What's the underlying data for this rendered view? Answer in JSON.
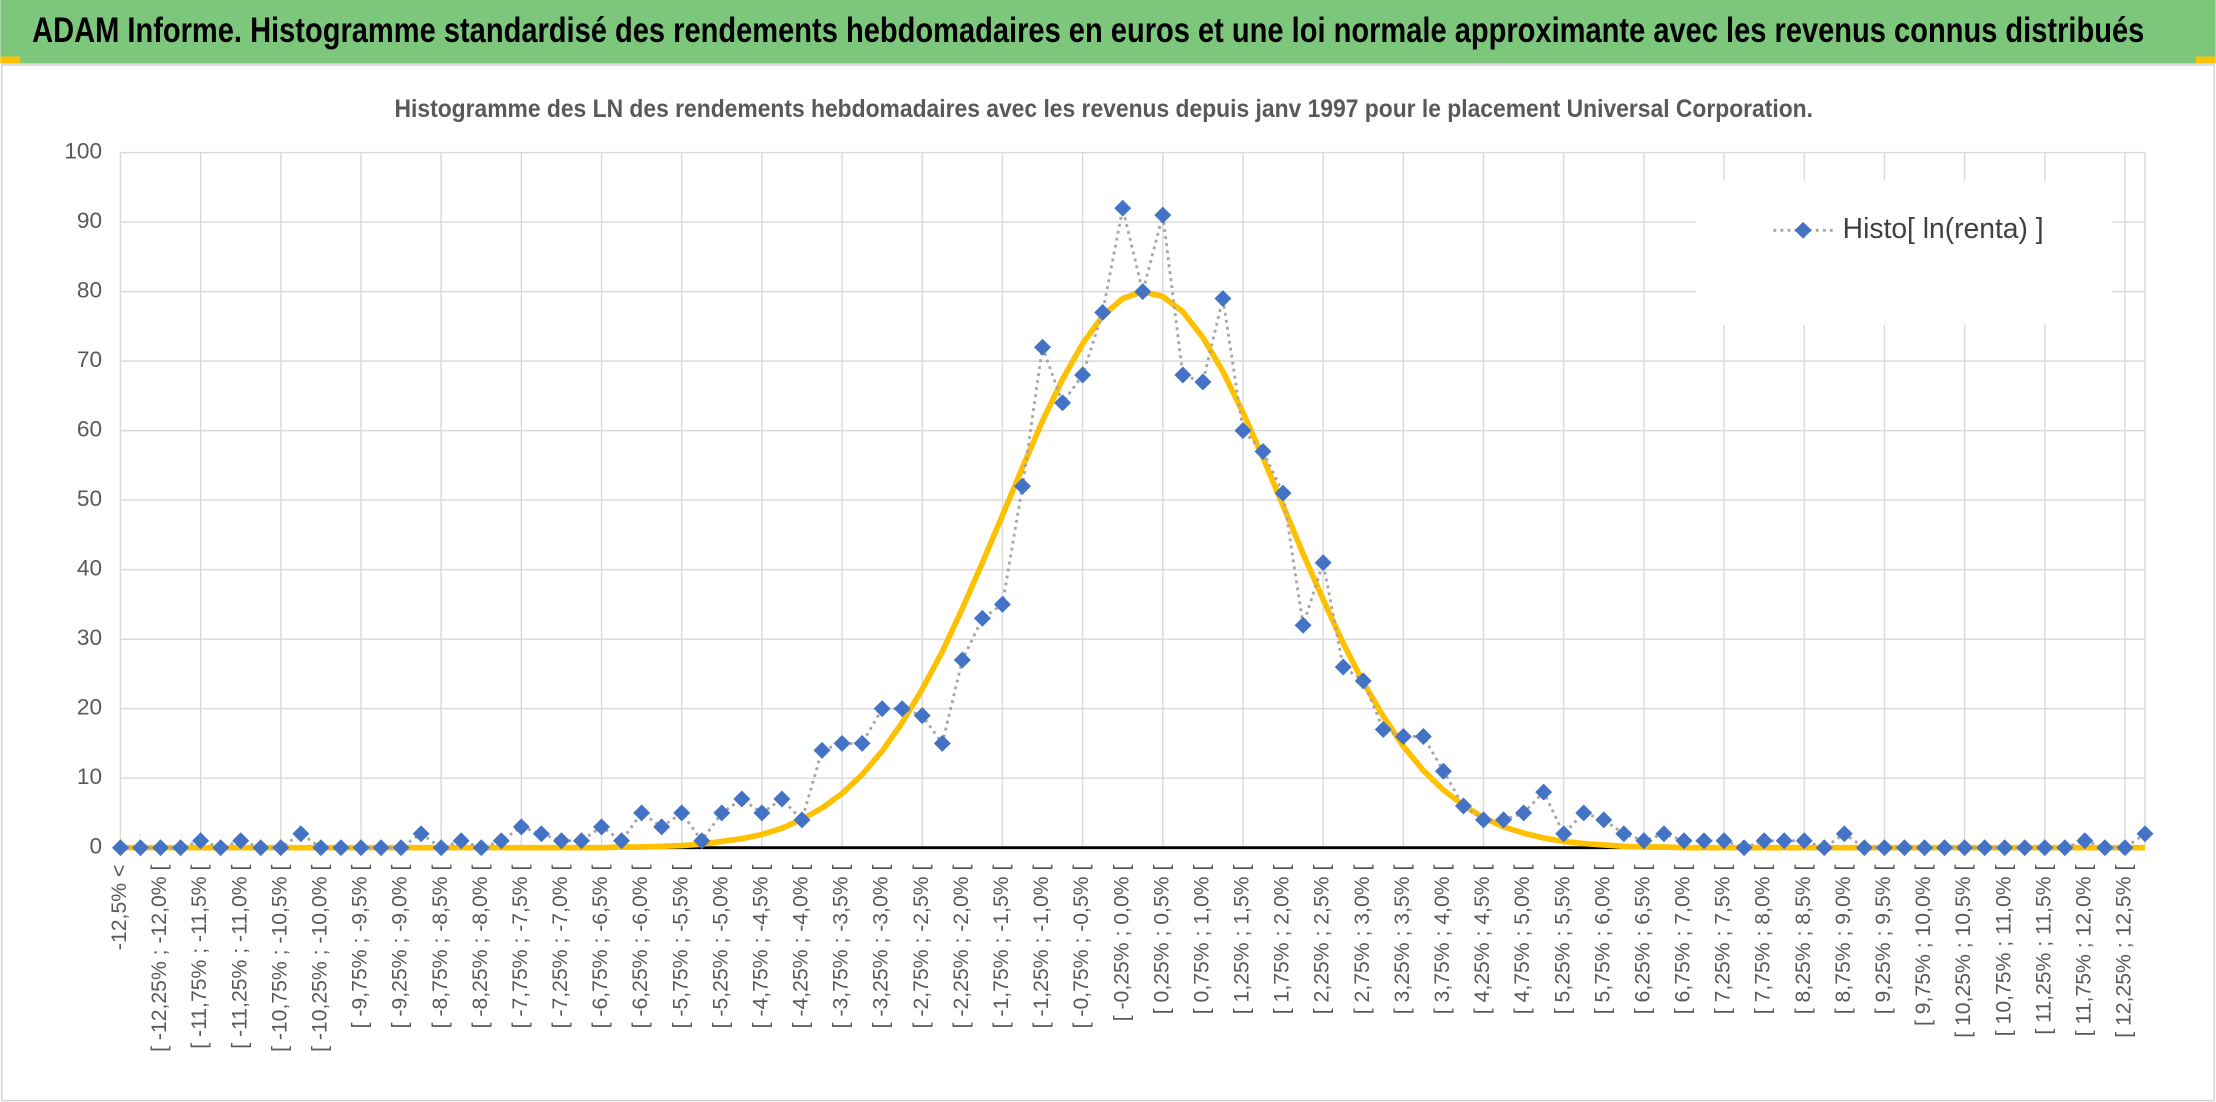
{
  "chart_data": {
    "type": "line",
    "title": "ADAM Informe. Histogramme standardisé des rendements hebdomadaires en euros et une loi normale approximante avec les revenus connus distribués",
    "subtitle": "Histogramme des LN des rendements hebdomadaires avec les revenus depuis janv 1997 pour le placement Universal Corporation.",
    "categories": [
      "-12,5% <",
      null,
      "[ -12,25% ; -12,0% [",
      null,
      "[ -11,75% ; -11,5% [",
      null,
      "[ -11,25% ; -11,0% [",
      null,
      "[ -10,75% ; -10,5% [",
      null,
      "[ -10,25% ; -10,0% [",
      null,
      "[ -9,75% ; -9,5% [",
      null,
      "[ -9,25% ; -9,0% [",
      null,
      "[ -8,75% ; -8,5% [",
      null,
      "[ -8,25% ; -8,0% [",
      null,
      "[ -7,75% ; -7,5% [",
      null,
      "[ -7,25% ; -7,0% [",
      null,
      "[ -6,75% ; -6,5% [",
      null,
      "[ -6,25% ; -6,0% [",
      null,
      "[ -5,75% ; -5,5% [",
      null,
      "[ -5,25% ; -5,0% [",
      null,
      "[ -4,75% ; -4,5% [",
      null,
      "[ -4,25% ; -4,0% [",
      null,
      "[ -3,75% ; -3,5% [",
      null,
      "[ -3,25% ; -3,0% [",
      null,
      "[ -2,75% ; -2,5% [",
      null,
      "[ -2,25% ; -2,0% [",
      null,
      "[ -1,75% ; -1,5% [",
      null,
      "[ -1,25% ; -1,0% [",
      null,
      "[ -0,75% ; -0,5% [",
      null,
      "[ -0,25% ; 0,0% [",
      null,
      "[ 0,25% ; 0,5% [",
      null,
      "[ 0,75% ; 1,0% [",
      null,
      "[ 1,25% ; 1,5% [",
      null,
      "[ 1,75% ; 2,0% [",
      null,
      "[ 2,25% ; 2,5% [",
      null,
      "[ 2,75% ; 3,0% [",
      null,
      "[ 3,25% ; 3,5% [",
      null,
      "[ 3,75% ; 4,0% [",
      null,
      "[ 4,25% ; 4,5% [",
      null,
      "[ 4,75% ; 5,0% [",
      null,
      "[ 5,25% ; 5,5% [",
      null,
      "[ 5,75% ; 6,0% [",
      null,
      "[ 6,25% ; 6,5% [",
      null,
      "[ 6,75% ; 7,0% [",
      null,
      "[ 7,25% ; 7,5% [",
      null,
      "[ 7,75% ; 8,0% [",
      null,
      "[ 8,25% ; 8,5% [",
      null,
      "[ 8,75% ; 9,0% [",
      null,
      "[ 9,25% ; 9,5% [",
      null,
      "[ 9,75% ; 10,0% [",
      null,
      "[ 10,25% ; 10,5% [",
      null,
      "[ 10,75% ; 11,0% [",
      null,
      "[ 11,25% ; 11,5% [",
      null,
      "[ 11,75% ; 12,0% [",
      null,
      "[ 12,25% ; 12,5% [",
      null
    ],
    "series": [
      {
        "name": "Histo[ ln(renta) ]",
        "color": "#4472c4",
        "line_color": "#a5a5a5",
        "marker": "diamond",
        "values": [
          0,
          0,
          0,
          0,
          1,
          0,
          1,
          0,
          0,
          2,
          0,
          0,
          0,
          0,
          0,
          2,
          0,
          1,
          0,
          1,
          3,
          2,
          1,
          1,
          3,
          1,
          5,
          3,
          5,
          1,
          5,
          7,
          5,
          7,
          4,
          14,
          15,
          15,
          20,
          20,
          19,
          15,
          27,
          33,
          35,
          52,
          72,
          64,
          68,
          77,
          92,
          80,
          91,
          68,
          67,
          79,
          60,
          57,
          51,
          32,
          41,
          26,
          24,
          17,
          16,
          16,
          11,
          6,
          4,
          4,
          5,
          8,
          2,
          5,
          4,
          2,
          1,
          2,
          1,
          1,
          1,
          0,
          1,
          1,
          1,
          0,
          2,
          0,
          0,
          0,
          0,
          0,
          0,
          0,
          0,
          0,
          0,
          0,
          1,
          0,
          0,
          2
        ]
      },
      {
        "color": "#ffc000",
        "values": [
          0,
          0,
          0,
          0,
          0,
          0,
          0,
          0,
          0,
          0,
          0,
          0,
          0,
          0,
          0,
          0,
          0,
          0,
          0,
          0,
          0,
          0,
          0,
          0,
          0,
          0.1,
          0.1,
          0.2,
          0.3,
          0.5,
          0.9,
          1.3,
          1.9,
          2.8,
          4.1,
          5.7,
          7.8,
          10.5,
          13.9,
          18,
          22.8,
          28.2,
          34.4,
          41,
          47.8,
          54.7,
          61.4,
          67.4,
          72.5,
          76.5,
          79,
          80,
          79.3,
          77.1,
          73.4,
          68.5,
          62.6,
          56.1,
          49.2,
          42.3,
          35.7,
          29.4,
          23.8,
          18.9,
          14.6,
          11.1,
          8.3,
          6.1,
          4.3,
          3,
          2.1,
          1.4,
          0.9,
          0.6,
          0.4,
          0.2,
          0.1,
          0.1,
          0,
          0,
          0,
          0,
          0,
          0,
          0,
          0,
          0,
          0,
          0,
          0,
          0,
          0,
          0,
          0,
          0,
          0,
          0,
          0,
          0,
          0,
          0,
          0
        ]
      }
    ],
    "ylim": [
      0,
      100
    ],
    "yticks": [
      0,
      10,
      20,
      30,
      40,
      50,
      60,
      70,
      80,
      90,
      100
    ],
    "grid": true,
    "legend": "top-right"
  }
}
